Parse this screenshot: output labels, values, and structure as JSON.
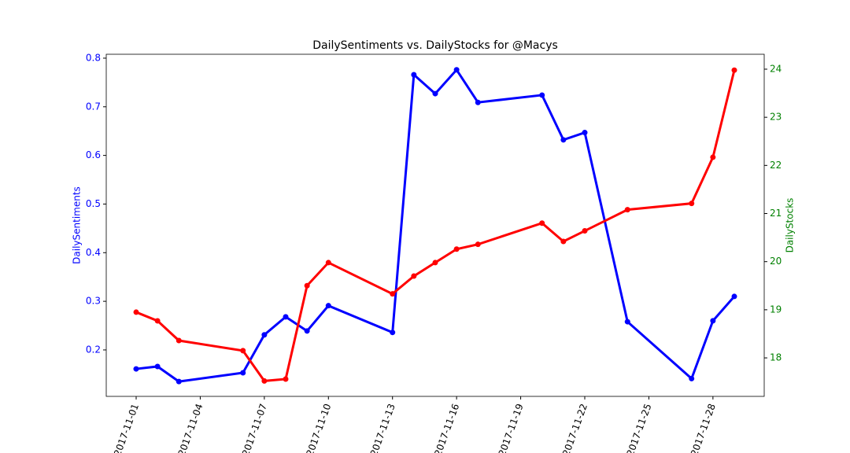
{
  "chart_data": {
    "type": "line",
    "title": "DailySentiments vs. DailyStocks for @Macys",
    "ylabel": "DailySentiments",
    "y2label": "DailyStocks",
    "x": [
      "2017-11-01",
      "2017-11-02",
      "2017-11-03",
      "2017-11-06",
      "2017-11-07",
      "2017-11-08",
      "2017-11-09",
      "2017-11-10",
      "2017-11-13",
      "2017-11-14",
      "2017-11-15",
      "2017-11-16",
      "2017-11-17",
      "2017-11-20",
      "2017-11-21",
      "2017-11-22",
      "2017-11-24",
      "2017-11-27",
      "2017-11-28",
      "2017-11-29"
    ],
    "xlim": [
      "2017-10-30T14:24Z",
      "2017-11-30T09:36Z"
    ],
    "xticks": [
      "2017-11-01",
      "2017-11-04",
      "2017-11-07",
      "2017-11-10",
      "2017-11-13",
      "2017-11-16",
      "2017-11-19",
      "2017-11-22",
      "2017-11-25",
      "2017-11-28"
    ],
    "ylim": [
      0.1045,
      0.808
    ],
    "yticks": [
      0.2,
      0.3,
      0.4,
      0.5,
      0.6,
      0.7,
      0.8
    ],
    "y2lim": [
      17.2,
      24.31
    ],
    "y2ticks": [
      18,
      19,
      20,
      21,
      22,
      23,
      24
    ],
    "ylabel_color": "#0000ff",
    "y2label_color": "#008000",
    "series": [
      {
        "color": "#0000ff",
        "values": [
          0.161,
          0.166,
          0.135,
          0.153,
          0.231,
          0.268,
          0.239,
          0.291,
          0.236,
          0.766,
          0.727,
          0.776,
          0.709,
          0.724,
          0.632,
          0.647,
          0.258,
          0.141,
          0.26,
          0.31
        ]
      },
      {
        "color": "#ff0000",
        "axis": "y2",
        "values": [
          18.95,
          18.77,
          18.36,
          18.15,
          17.52,
          17.56,
          19.5,
          19.98,
          19.33,
          19.7,
          19.98,
          20.26,
          20.36,
          20.8,
          20.42,
          20.64,
          21.08,
          21.21,
          22.17,
          23.98
        ]
      }
    ]
  }
}
